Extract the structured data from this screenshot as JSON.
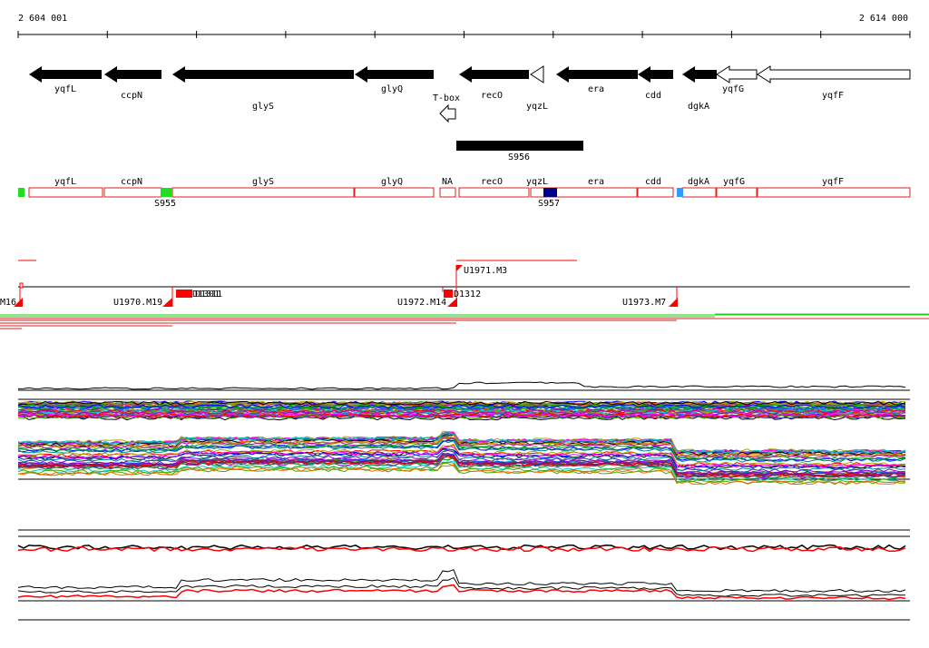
{
  "coords": {
    "start": "2 604 001",
    "end": "2 614 000"
  },
  "genes": [
    {
      "name": "yqfL",
      "strand": "-",
      "filled": true
    },
    {
      "name": "ccpN",
      "strand": "-",
      "filled": true
    },
    {
      "name": "glyS",
      "strand": "-",
      "filled": true
    },
    {
      "name": "glyQ",
      "strand": "-",
      "filled": true
    },
    {
      "name": "T-box",
      "strand": "-",
      "filled": false
    },
    {
      "name": "recO",
      "strand": "-",
      "filled": true
    },
    {
      "name": "yqzL",
      "strand": "-",
      "filled": false
    },
    {
      "name": "era",
      "strand": "-",
      "filled": true
    },
    {
      "name": "cdd",
      "strand": "-",
      "filled": true
    },
    {
      "name": "dgkA",
      "strand": "-",
      "filled": true
    },
    {
      "name": "yqfG",
      "strand": "-",
      "filled": false
    },
    {
      "name": "yqfF",
      "strand": "-",
      "filled": false
    }
  ],
  "segment_bar": {
    "label": "S956"
  },
  "regions": [
    {
      "name": "yqfL"
    },
    {
      "name": "ccpN"
    },
    {
      "name": "glyS"
    },
    {
      "name": "glyQ"
    },
    {
      "name": "NA"
    },
    {
      "name": "recO"
    },
    {
      "name": "yqzL"
    },
    {
      "name": "era"
    },
    {
      "name": "cdd"
    },
    {
      "name": "dgkA"
    },
    {
      "name": "yqfG"
    },
    {
      "name": "yqfF"
    }
  ],
  "region_markers": [
    {
      "label": "",
      "color": "#22dd22"
    },
    {
      "label": "S955",
      "color": "#22dd22"
    },
    {
      "label": "S957",
      "color": "#000088"
    },
    {
      "label": "",
      "color": "#3399ff"
    }
  ],
  "transcripts": [
    {
      "label": "M16"
    },
    {
      "label": "U1970.M19"
    },
    {
      "label": "U1972.M14"
    },
    {
      "label": "U1973.M7"
    },
    {
      "label": "U1971.M3"
    }
  ],
  "small_labels": [
    {
      "label": "D1301"
    },
    {
      "label": "D1311"
    },
    {
      "label": "D1312"
    }
  ],
  "colors": {
    "arrow": "#000000",
    "region_outline": "#dd2222",
    "marker_red": "#ff0000",
    "line_green": "#22cc22",
    "line_red": "#dd2222"
  },
  "icons": {
    "gene_arrow": "left-arrow-shape",
    "start_flag": "red-triangle-flag"
  }
}
